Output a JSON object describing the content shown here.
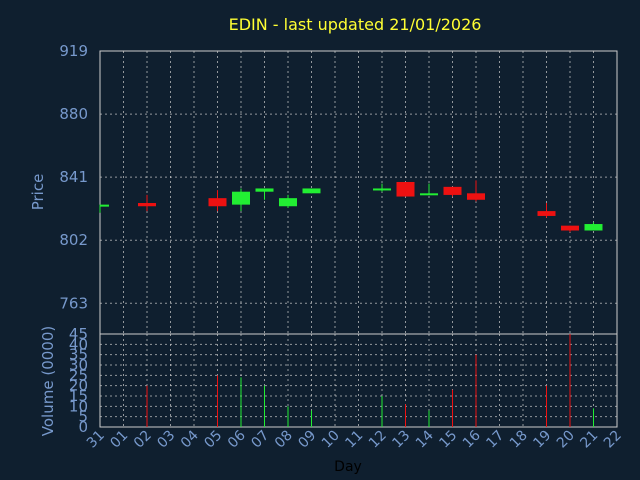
{
  "chart_data": {
    "type": "candlestick",
    "title": "EDIN - last updated 21/01/2026",
    "price_label": "Price",
    "volume_label": "Volume (0000)",
    "xlabel": "Day",
    "price_ylim": [
      744,
      919
    ],
    "price_ticks": [
      919,
      880,
      841,
      802,
      763
    ],
    "volume_ylim": [
      0,
      45
    ],
    "volume_ticks": [
      45,
      40,
      35,
      30,
      25,
      20,
      15,
      10,
      5,
      0
    ],
    "x_ticks": [
      "31",
      "01",
      "02",
      "03",
      "04",
      "05",
      "06",
      "07",
      "08",
      "09",
      "10",
      "11",
      "12",
      "13",
      "14",
      "15",
      "16",
      "17",
      "18",
      "19",
      "20",
      "21",
      "22"
    ],
    "colors": {
      "up": "#22ee33",
      "down": "#ee1111",
      "title": "#ffff33",
      "axis": "#7799cc",
      "grid": "#cccccc",
      "background": "#0f1f2f"
    },
    "candles": [
      {
        "x": "31",
        "open": 823,
        "high": 824,
        "low": 819,
        "close": 824
      },
      {
        "x": "02",
        "open": 825,
        "high": 830,
        "low": 820,
        "close": 823
      },
      {
        "x": "05",
        "open": 828,
        "high": 833,
        "low": 820,
        "close": 823
      },
      {
        "x": "06",
        "open": 824,
        "high": 834,
        "low": 820,
        "close": 832
      },
      {
        "x": "07",
        "open": 832,
        "high": 834,
        "low": 827,
        "close": 834
      },
      {
        "x": "08",
        "open": 823,
        "high": 830,
        "low": 822,
        "close": 828
      },
      {
        "x": "09",
        "open": 831,
        "high": 834,
        "low": 831,
        "close": 834
      },
      {
        "x": "12",
        "open": 833,
        "high": 837,
        "low": 832,
        "close": 834
      },
      {
        "x": "13",
        "open": 838,
        "high": 838,
        "low": 829,
        "close": 829
      },
      {
        "x": "14",
        "open": 830,
        "high": 837,
        "low": 830,
        "close": 831
      },
      {
        "x": "15",
        "open": 835,
        "high": 835,
        "low": 829,
        "close": 830
      },
      {
        "x": "16",
        "open": 831,
        "high": 839,
        "low": 826,
        "close": 827
      },
      {
        "x": "19",
        "open": 820,
        "high": 825,
        "low": 816,
        "close": 817
      },
      {
        "x": "20",
        "open": 811,
        "high": 811,
        "low": 807,
        "close": 808
      },
      {
        "x": "21",
        "open": 808,
        "high": 813,
        "low": 808,
        "close": 812
      }
    ],
    "volumes": [
      {
        "x": "02",
        "value": 20,
        "color": "down"
      },
      {
        "x": "05",
        "value": 25,
        "color": "down"
      },
      {
        "x": "06",
        "value": 24,
        "color": "up"
      },
      {
        "x": "07",
        "value": 20,
        "color": "up"
      },
      {
        "x": "08",
        "value": 10,
        "color": "up"
      },
      {
        "x": "09",
        "value": 8,
        "color": "up"
      },
      {
        "x": "12",
        "value": 15,
        "color": "up"
      },
      {
        "x": "13",
        "value": 11,
        "color": "down"
      },
      {
        "x": "14",
        "value": 8,
        "color": "up"
      },
      {
        "x": "15",
        "value": 18,
        "color": "down"
      },
      {
        "x": "16",
        "value": 35,
        "color": "down"
      },
      {
        "x": "19",
        "value": 20,
        "color": "down"
      },
      {
        "x": "20",
        "value": 45,
        "color": "down"
      },
      {
        "x": "21",
        "value": 9,
        "color": "up"
      }
    ]
  }
}
